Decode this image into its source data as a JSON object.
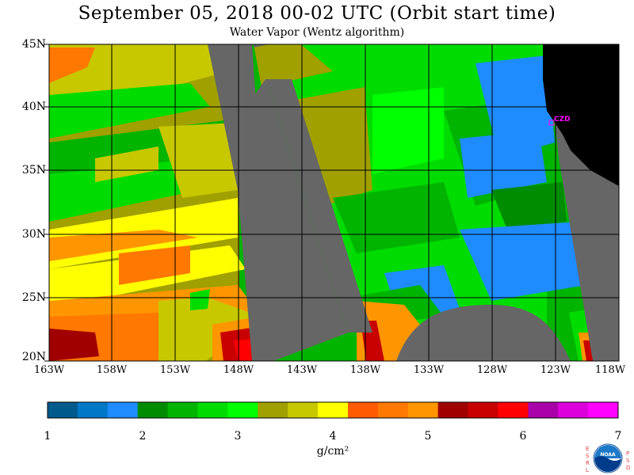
{
  "title": "September 05, 2018  00-02 UTC  (Orbit start time)",
  "subtitle": "Water Vapor (Wentz algorithm)",
  "map": {
    "lat_labels": [
      "45N",
      "40N",
      "35N",
      "30N",
      "25N",
      "20N"
    ],
    "lon_labels": [
      "163W",
      "158W",
      "153W",
      "148W",
      "143W",
      "138W",
      "133W",
      "128W",
      "123W",
      "118W"
    ],
    "station_label": "CZD",
    "colors": {
      "no_data": "#666666",
      "land": "#000000",
      "station": "#ff00ff",
      "grid": "#000000"
    }
  },
  "colorbar": {
    "ticks": [
      "1",
      "2",
      "3",
      "4",
      "5",
      "6",
      "7"
    ],
    "colors": [
      "#005a8c",
      "#0078c8",
      "#1e8cff",
      "#008c00",
      "#00b400",
      "#00dc00",
      "#00ff00",
      "#a0a000",
      "#c8c800",
      "#ffff00",
      "#ff5a00",
      "#ff7800",
      "#ff9600",
      "#a00000",
      "#c80000",
      "#ff0000",
      "#aa00aa",
      "#dc00dc",
      "#ff00ff"
    ],
    "units": "g/cm²"
  },
  "logo": {
    "left_letters": "ESRL",
    "right_letters": "PSD",
    "center_text": "NOAA"
  }
}
